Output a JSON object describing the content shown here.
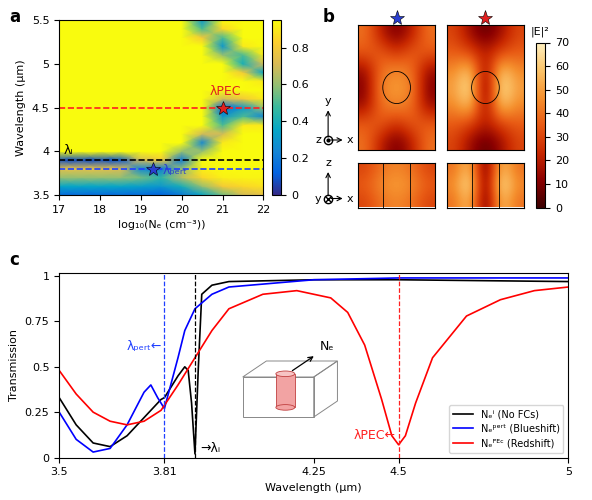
{
  "chart_data": [
    {
      "type": "heatmap",
      "panel": "a",
      "x_label": "log₁₀(Nₑ (cm⁻³))",
      "y_label": "Wavelength (μm)",
      "x": [
        17,
        17.5,
        18,
        18.5,
        19,
        19.5,
        20,
        20.5,
        21,
        21.5,
        22
      ],
      "y": [
        3.5,
        3.6,
        3.7,
        3.8,
        3.9,
        4.0,
        4.1,
        4.2,
        4.3,
        4.4,
        4.5,
        4.6,
        4.7,
        4.8,
        4.9,
        5.0,
        5.1,
        5.2,
        5.3,
        5.4,
        5.5
      ],
      "cells": [
        [
          0.15,
          0.15,
          0.15,
          0.15,
          0.15,
          0.12,
          0.2,
          0.35,
          0.55,
          0.7,
          0.75
        ],
        [
          0.35,
          0.35,
          0.35,
          0.35,
          0.33,
          0.3,
          0.4,
          0.6,
          0.8,
          0.85,
          0.88
        ],
        [
          0.6,
          0.6,
          0.6,
          0.6,
          0.55,
          0.45,
          0.65,
          0.85,
          0.92,
          0.93,
          0.93
        ],
        [
          0.75,
          0.75,
          0.75,
          0.72,
          0.25,
          0.2,
          0.6,
          0.92,
          0.95,
          0.95,
          0.95
        ],
        [
          0.08,
          0.08,
          0.08,
          0.1,
          0.7,
          0.8,
          0.2,
          0.95,
          0.95,
          0.95,
          0.95
        ],
        [
          0.95,
          0.95,
          0.95,
          0.95,
          0.95,
          0.95,
          0.6,
          0.6,
          0.95,
          0.95,
          0.95
        ],
        [
          0.95,
          0.95,
          0.95,
          0.95,
          0.95,
          0.95,
          0.95,
          0.25,
          0.9,
          0.95,
          0.95
        ],
        [
          0.95,
          0.95,
          0.95,
          0.95,
          0.95,
          0.95,
          0.95,
          0.7,
          0.7,
          0.95,
          0.95
        ],
        [
          0.95,
          0.95,
          0.95,
          0.95,
          0.95,
          0.95,
          0.95,
          0.95,
          0.5,
          0.9,
          0.9
        ],
        [
          0.95,
          0.95,
          0.95,
          0.95,
          0.95,
          0.95,
          0.95,
          0.95,
          0.3,
          0.5,
          0.25
        ],
        [
          0.95,
          0.95,
          0.95,
          0.95,
          0.95,
          0.95,
          0.95,
          0.95,
          0.15,
          0.3,
          0.6
        ],
        [
          0.95,
          0.95,
          0.95,
          0.95,
          0.95,
          0.95,
          0.95,
          0.95,
          0.7,
          0.8,
          0.9
        ],
        [
          0.95,
          0.95,
          0.95,
          0.95,
          0.95,
          0.95,
          0.95,
          0.95,
          0.95,
          0.95,
          0.95
        ],
        [
          0.95,
          0.95,
          0.95,
          0.95,
          0.95,
          0.95,
          0.95,
          0.95,
          0.95,
          0.95,
          0.9
        ],
        [
          0.95,
          0.95,
          0.95,
          0.95,
          0.95,
          0.95,
          0.95,
          0.95,
          0.95,
          0.8,
          0.35
        ],
        [
          0.95,
          0.95,
          0.95,
          0.95,
          0.95,
          0.95,
          0.95,
          0.95,
          0.95,
          0.4,
          0.7
        ],
        [
          0.95,
          0.95,
          0.95,
          0.95,
          0.95,
          0.95,
          0.95,
          0.95,
          0.6,
          0.5,
          0.9
        ],
        [
          0.95,
          0.95,
          0.95,
          0.95,
          0.95,
          0.95,
          0.95,
          0.95,
          0.3,
          0.9,
          0.95
        ],
        [
          0.95,
          0.95,
          0.95,
          0.95,
          0.95,
          0.95,
          0.95,
          0.8,
          0.5,
          0.95,
          0.95
        ],
        [
          0.95,
          0.95,
          0.95,
          0.95,
          0.95,
          0.95,
          0.95,
          0.5,
          0.85,
          0.95,
          0.95
        ],
        [
          0.95,
          0.95,
          0.95,
          0.95,
          0.95,
          0.95,
          0.95,
          0.3,
          0.95,
          0.95,
          0.95
        ]
      ],
      "xlim": [
        17,
        22
      ],
      "ylim": [
        3.5,
        5.5
      ],
      "xticks": [
        17,
        18,
        19,
        20,
        21,
        22
      ],
      "yticks": [
        3.5,
        4,
        4.5,
        5,
        5.5
      ],
      "colorbar": {
        "range": [
          0,
          0.95
        ],
        "ticks": [
          0,
          0.2,
          0.4,
          0.6,
          0.8
        ]
      },
      "line_style": "dashed",
      "lines": [
        {
          "name": "λᵢ",
          "value": 3.9,
          "color": "#000000"
        },
        {
          "value": 3.8,
          "color": "#1f3fff"
        },
        {
          "value": 4.5,
          "color": "#ff2020"
        }
      ],
      "marker": "star",
      "points": [
        {
          "name": "λₚₑᵣₜ",
          "x": 19.3,
          "y": 3.8,
          "color": "#2a3fd0"
        },
        {
          "name": "λPEC",
          "x": 21,
          "y": 4.5,
          "color": "#e02020"
        }
      ]
    },
    {
      "type": "heatmap",
      "panel": "b",
      "colorbar": {
        "title": "|E|²",
        "range": [
          0,
          70
        ],
        "ticks": [
          0,
          10,
          20,
          30,
          40,
          50,
          60,
          70
        ]
      },
      "axes_labels": [
        {
          "up": "y",
          "right": "x",
          "out": "z"
        },
        {
          "up": "z",
          "right": "x",
          "out": "y"
        }
      ],
      "maps": [
        {
          "color": "#2a3fd0",
          "cells_xy": [
            [
              40,
              20,
              8,
              20,
              40
            ],
            [
              35,
              35,
              25,
              35,
              35
            ],
            [
              15,
              40,
              45,
              40,
              15
            ],
            [
              10,
              45,
              50,
              45,
              10
            ],
            [
              15,
              40,
              45,
              40,
              15
            ],
            [
              35,
              35,
              25,
              35,
              35
            ],
            [
              40,
              20,
              8,
              20,
              40
            ]
          ],
          "cells_xz": [
            [
              30,
              40,
              45,
              40,
              30
            ],
            [
              35,
              45,
              50,
              45,
              35
            ],
            [
              30,
              40,
              45,
              40,
              30
            ]
          ]
        },
        {
          "color": "#e02020",
          "cells_xy": [
            [
              30,
              15,
              5,
              15,
              30
            ],
            [
              35,
              30,
              20,
              30,
              35
            ],
            [
              45,
              60,
              10,
              60,
              45
            ],
            [
              50,
              70,
              0,
              70,
              50
            ],
            [
              45,
              60,
              10,
              60,
              45
            ],
            [
              35,
              30,
              20,
              30,
              35
            ],
            [
              30,
              15,
              5,
              15,
              30
            ]
          ],
          "cells_xz": [
            [
              40,
              60,
              0,
              60,
              40
            ],
            [
              45,
              70,
              0,
              70,
              45
            ],
            [
              40,
              60,
              0,
              60,
              40
            ]
          ]
        }
      ]
    },
    {
      "type": "line",
      "panel": "c",
      "x_label": "Wavelength (μm)",
      "y_label": "Transmission",
      "xlim": [
        3.5,
        5
      ],
      "ylim": [
        0,
        1.02
      ],
      "xticks": [
        3.5,
        3.81,
        4.25,
        4.5,
        5
      ],
      "yticks": [
        0,
        0.25,
        0.5,
        0.75,
        1
      ],
      "legend": "lower right",
      "inset_label": "Nₑ",
      "line_style": "dashed",
      "lines": [
        {
          "name": "λₚₑᵣₜ←",
          "value": 3.81,
          "color": "#1f3fff"
        },
        {
          "name": "→λᵢ",
          "value": 3.9,
          "color": "#000000"
        },
        {
          "name": "λPEC←",
          "value": 4.5,
          "color": "#ff2020"
        }
      ],
      "series": [
        {
          "name": "Nₑⁱ (No FCs)",
          "color": "#000000",
          "x": [
            3.5,
            3.55,
            3.6,
            3.65,
            3.7,
            3.75,
            3.8,
            3.81,
            3.85,
            3.87,
            3.88,
            3.89,
            3.9,
            3.91,
            3.92,
            3.95,
            4.0,
            4.25,
            4.5,
            5.0
          ],
          "values": [
            0.33,
            0.18,
            0.08,
            0.06,
            0.12,
            0.22,
            0.32,
            0.33,
            0.45,
            0.5,
            0.48,
            0.3,
            0.02,
            0.5,
            0.9,
            0.95,
            0.97,
            0.98,
            0.98,
            0.97
          ]
        },
        {
          "name": "Nₑᵖᵉʳᵗ (Blueshift)",
          "color": "#0000ff",
          "x": [
            3.5,
            3.55,
            3.6,
            3.65,
            3.7,
            3.75,
            3.77,
            3.79,
            3.81,
            3.85,
            3.87,
            3.9,
            3.95,
            4.0,
            4.25,
            4.5,
            5.0
          ],
          "values": [
            0.25,
            0.1,
            0.03,
            0.05,
            0.18,
            0.36,
            0.4,
            0.33,
            0.27,
            0.55,
            0.7,
            0.82,
            0.9,
            0.94,
            0.98,
            0.99,
            0.99
          ]
        },
        {
          "name": "Nₑᴾᴱᶜ (Redshift)",
          "color": "#ff0000",
          "x": [
            3.5,
            3.55,
            3.6,
            3.65,
            3.7,
            3.75,
            3.8,
            3.85,
            3.9,
            3.95,
            4.0,
            4.1,
            4.2,
            4.3,
            4.35,
            4.4,
            4.45,
            4.48,
            4.5,
            4.52,
            4.55,
            4.6,
            4.7,
            4.8,
            4.9,
            5.0
          ],
          "values": [
            0.48,
            0.35,
            0.25,
            0.2,
            0.18,
            0.2,
            0.26,
            0.4,
            0.55,
            0.7,
            0.82,
            0.9,
            0.92,
            0.88,
            0.8,
            0.62,
            0.32,
            0.12,
            0.07,
            0.12,
            0.3,
            0.55,
            0.78,
            0.87,
            0.92,
            0.94
          ]
        }
      ]
    }
  ]
}
